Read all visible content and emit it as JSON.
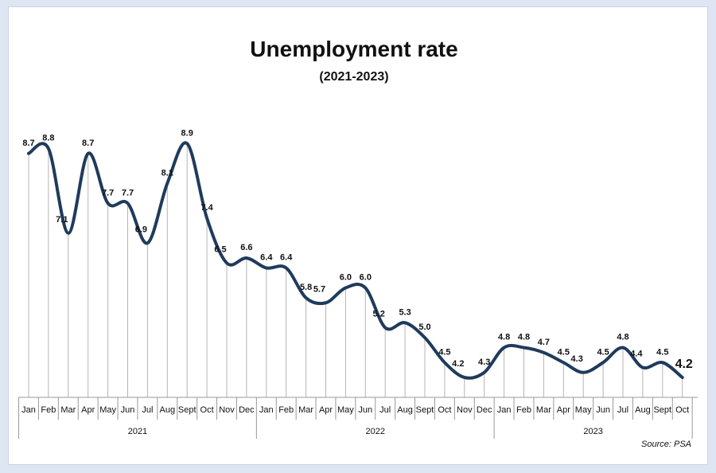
{
  "chart_data": {
    "type": "line",
    "title": "Unemployment rate",
    "subtitle": "(2021-2023)",
    "source": "Source: PSA",
    "xlabel": "",
    "ylabel": "",
    "ylim": [
      3.8,
      9.4
    ],
    "grid": false,
    "categories": [
      "Jan",
      "Feb",
      "Mar",
      "Apr",
      "May",
      "Jun",
      "Jul",
      "Aug",
      "Sept",
      "Oct",
      "Nov",
      "Dec",
      "Jan",
      "Feb",
      "Mar",
      "Apr",
      "May",
      "Jun",
      "Jul",
      "Aug",
      "Sept",
      "Oct",
      "Nov",
      "Dec",
      "Jan",
      "Feb",
      "Mar",
      "Apr",
      "May",
      "Jun",
      "Jul",
      "Aug",
      "Sept",
      "Oct"
    ],
    "years": [
      {
        "label": "2021",
        "count": 12
      },
      {
        "label": "2022",
        "count": 12
      },
      {
        "label": "2023",
        "count": 10
      }
    ],
    "series": [
      {
        "values": [
          8.7,
          8.8,
          7.1,
          8.7,
          7.7,
          7.7,
          6.9,
          8.1,
          8.9,
          7.4,
          6.5,
          6.6,
          6.4,
          6.4,
          5.8,
          5.7,
          6.0,
          6.0,
          5.2,
          5.3,
          5.0,
          4.5,
          4.2,
          4.3,
          4.8,
          4.8,
          4.7,
          4.5,
          4.3,
          4.5,
          4.8,
          4.4,
          4.5,
          4.2
        ],
        "labels": [
          "8.7",
          "8.8",
          "7.1",
          "8.7",
          "7.7",
          "7.7",
          "6.9",
          "8.1",
          "8.9",
          "7.4",
          "6.5",
          "6.6",
          "6.4",
          "6.4",
          "5.8",
          "5.7",
          "6.0",
          "6.0",
          "5.2",
          "5.3",
          "5.0",
          "4.5",
          "4.2",
          "4.3",
          "4.8",
          "4.8",
          "4.7",
          "4.5",
          "4.3",
          "4.5",
          "4.8",
          "4.4",
          "4.5",
          "4.2"
        ]
      }
    ],
    "colors": {
      "line": "#1f3b5c",
      "drop": "#b5b5b5",
      "axis": "#999999"
    }
  }
}
